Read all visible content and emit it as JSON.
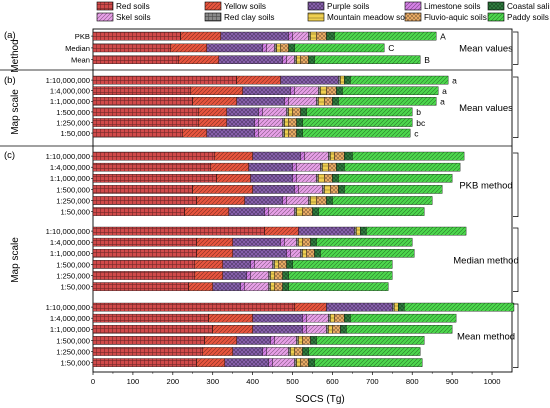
{
  "chart_data": {
    "type": "bar",
    "orientation": "horizontal",
    "stacked": true,
    "xlabel": "SOCS (Tg)",
    "xlim": [
      0,
      1050
    ],
    "xticks": [
      0,
      100,
      200,
      300,
      400,
      500,
      600,
      700,
      800,
      900,
      1000
    ],
    "legend_position": "top",
    "soil_types": [
      {
        "name": "Red soils",
        "color": "#d14a4a",
        "pattern": "grid"
      },
      {
        "name": "Yellow soils",
        "color": "#e8553e",
        "pattern": "diag"
      },
      {
        "name": "Purple soils",
        "color": "#8a62b0",
        "pattern": "cross"
      },
      {
        "name": "Limestone soils",
        "color": "#d580e6",
        "pattern": "diag"
      },
      {
        "name": "Skel soils",
        "color": "#e8a0e8",
        "pattern": "diag"
      },
      {
        "name": "Red clay soils",
        "color": "#8a8a8a",
        "pattern": "grid"
      },
      {
        "name": "Mountain meadow soils",
        "color": "#f0d050",
        "pattern": "hline"
      },
      {
        "name": "Fluvio-aquic soils",
        "color": "#f0b068",
        "pattern": "cross"
      },
      {
        "name": "Coastal saline soils",
        "color": "#2f7f3f",
        "pattern": "cross"
      },
      {
        "name": "Paddy soils",
        "color": "#4dd84d",
        "pattern": "diag"
      }
    ],
    "panels": [
      {
        "label": "(a)",
        "axis_title": "Method",
        "groups": [
          {
            "name": "Mean values",
            "bars": [
              {
                "label": "PKB",
                "sig": "A",
                "values": [
                  220,
                  100,
                  170,
                  10,
                  40,
                  5,
                  15,
                  25,
                  20,
                  255
                ]
              },
              {
                "label": "Median",
                "sig": "C",
                "values": [
                  195,
                  90,
                  140,
                  10,
                  20,
                  5,
                  10,
                  20,
                  15,
                  225
                ]
              },
              {
                "label": "Mean",
                "sig": "B",
                "values": [
                  215,
                  100,
                  160,
                  10,
                  20,
                  5,
                  10,
                  20,
                  15,
                  265
                ]
              }
            ]
          }
        ]
      },
      {
        "label": "(b)",
        "axis_title": "Map scale",
        "groups": [
          {
            "name": "Mean values",
            "bars": [
              {
                "label": "1:10,000,000",
                "sig": "a",
                "values": [
                  360,
                  110,
                  145,
                  0,
                  0,
                  5,
                  10,
                  0,
                  15,
                  245
                ]
              },
              {
                "label": "1:4,000,000",
                "sig": "a",
                "values": [
                  245,
                  130,
                  120,
                  10,
                  60,
                  5,
                  15,
                  25,
                  15,
                  240
                ]
              },
              {
                "label": "1:1,000,000",
                "sig": "a",
                "values": [
                  250,
                  110,
                  120,
                  10,
                  70,
                  5,
                  15,
                  20,
                  15,
                  245
                ]
              },
              {
                "label": "1:500,000",
                "sig": "b",
                "values": [
                  265,
                  70,
                  80,
                  10,
                  60,
                  5,
                  10,
                  20,
                  15,
                  265
                ]
              },
              {
                "label": "1:250,000",
                "sig": "bc",
                "values": [
                  265,
                  70,
                  70,
                  10,
                  60,
                  5,
                  10,
                  20,
                  15,
                  275
                ]
              },
              {
                "label": "1:50,000",
                "sig": "c",
                "values": [
                  225,
                  60,
                  120,
                  10,
                  60,
                  5,
                  10,
                  20,
                  15,
                  270
                ]
              }
            ]
          }
        ]
      },
      {
        "label": "(c)",
        "axis_title": "Map scale",
        "groups": [
          {
            "name": "PKB method",
            "bars": [
              {
                "label": "1:10,000,000",
                "values": [
                  305,
                  95,
                  120,
                  10,
                  60,
                  5,
                  10,
                  25,
                  20,
                  280
                ]
              },
              {
                "label": "1:4,000,000",
                "values": [
                  295,
                  95,
                  110,
                  10,
                  60,
                  5,
                  15,
                  20,
                  20,
                  290
                ]
              },
              {
                "label": "1:1,000,000",
                "values": [
                  310,
                  85,
                  105,
                  10,
                  50,
                  5,
                  15,
                  20,
                  15,
                  285
                ]
              },
              {
                "label": "1:500,000",
                "values": [
                  250,
                  150,
                  105,
                  10,
                  60,
                  5,
                  15,
                  20,
                  15,
                  245
                ]
              },
              {
                "label": "1:250,000",
                "values": [
                  260,
                  120,
                  95,
                  10,
                  55,
                  5,
                  15,
                  25,
                  15,
                  250
                ]
              },
              {
                "label": "1:50,000",
                "values": [
                  230,
                  110,
                  90,
                  10,
                  65,
                  5,
                  15,
                  25,
                  15,
                  265
                ]
              }
            ]
          },
          {
            "name": "Median method",
            "bars": [
              {
                "label": "1:10,000,000",
                "values": [
                  430,
                  85,
                  140,
                  0,
                  0,
                  5,
                  10,
                  0,
                  15,
                  250
                ]
              },
              {
                "label": "1:4,000,000",
                "values": [
                  260,
                  90,
                  120,
                  10,
                  30,
                  5,
                  10,
                  20,
                  15,
                  240
                ]
              },
              {
                "label": "1:1,000,000",
                "values": [
                  260,
                  90,
                  135,
                  10,
                  25,
                  5,
                  10,
                  20,
                  15,
                  235
                ]
              },
              {
                "label": "1:500,000",
                "values": [
                  255,
                  70,
                  70,
                  10,
                  45,
                  5,
                  10,
                  20,
                  15,
                  250
                ]
              },
              {
                "label": "1:250,000",
                "values": [
                  255,
                  70,
                  60,
                  10,
                  45,
                  5,
                  10,
                  20,
                  15,
                  260
                ]
              },
              {
                "label": "1:50,000",
                "values": [
                  240,
                  60,
                  70,
                  10,
                  60,
                  5,
                  10,
                  20,
                  15,
                  250
                ]
              }
            ]
          },
          {
            "name": "Mean method",
            "bars": [
              {
                "label": "1:10,000,000",
                "values": [
                  505,
                  80,
                  165,
                  0,
                  0,
                  5,
                  10,
                  0,
                  15,
                  275
                ]
              },
              {
                "label": "1:4,000,000",
                "values": [
                  290,
                  110,
                  125,
                  10,
                  55,
                  5,
                  10,
                  25,
                  15,
                  265
                ]
              },
              {
                "label": "1:1,000,000",
                "values": [
                  300,
                  100,
                  125,
                  10,
                  50,
                  5,
                  10,
                  20,
                  15,
                  265
                ]
              },
              {
                "label": "1:500,000",
                "values": [
                  280,
                  80,
                  85,
                  10,
                  55,
                  5,
                  10,
                  20,
                  15,
                  270
                ]
              },
              {
                "label": "1:250,000",
                "values": [
                  275,
                  75,
                  75,
                  10,
                  55,
                  5,
                  10,
                  20,
                  15,
                  280
                ]
              },
              {
                "label": "1:50,000",
                "values": [
                  260,
                  70,
                  110,
                  10,
                  55,
                  5,
                  10,
                  20,
                  15,
                  270
                ]
              }
            ]
          }
        ]
      }
    ]
  }
}
